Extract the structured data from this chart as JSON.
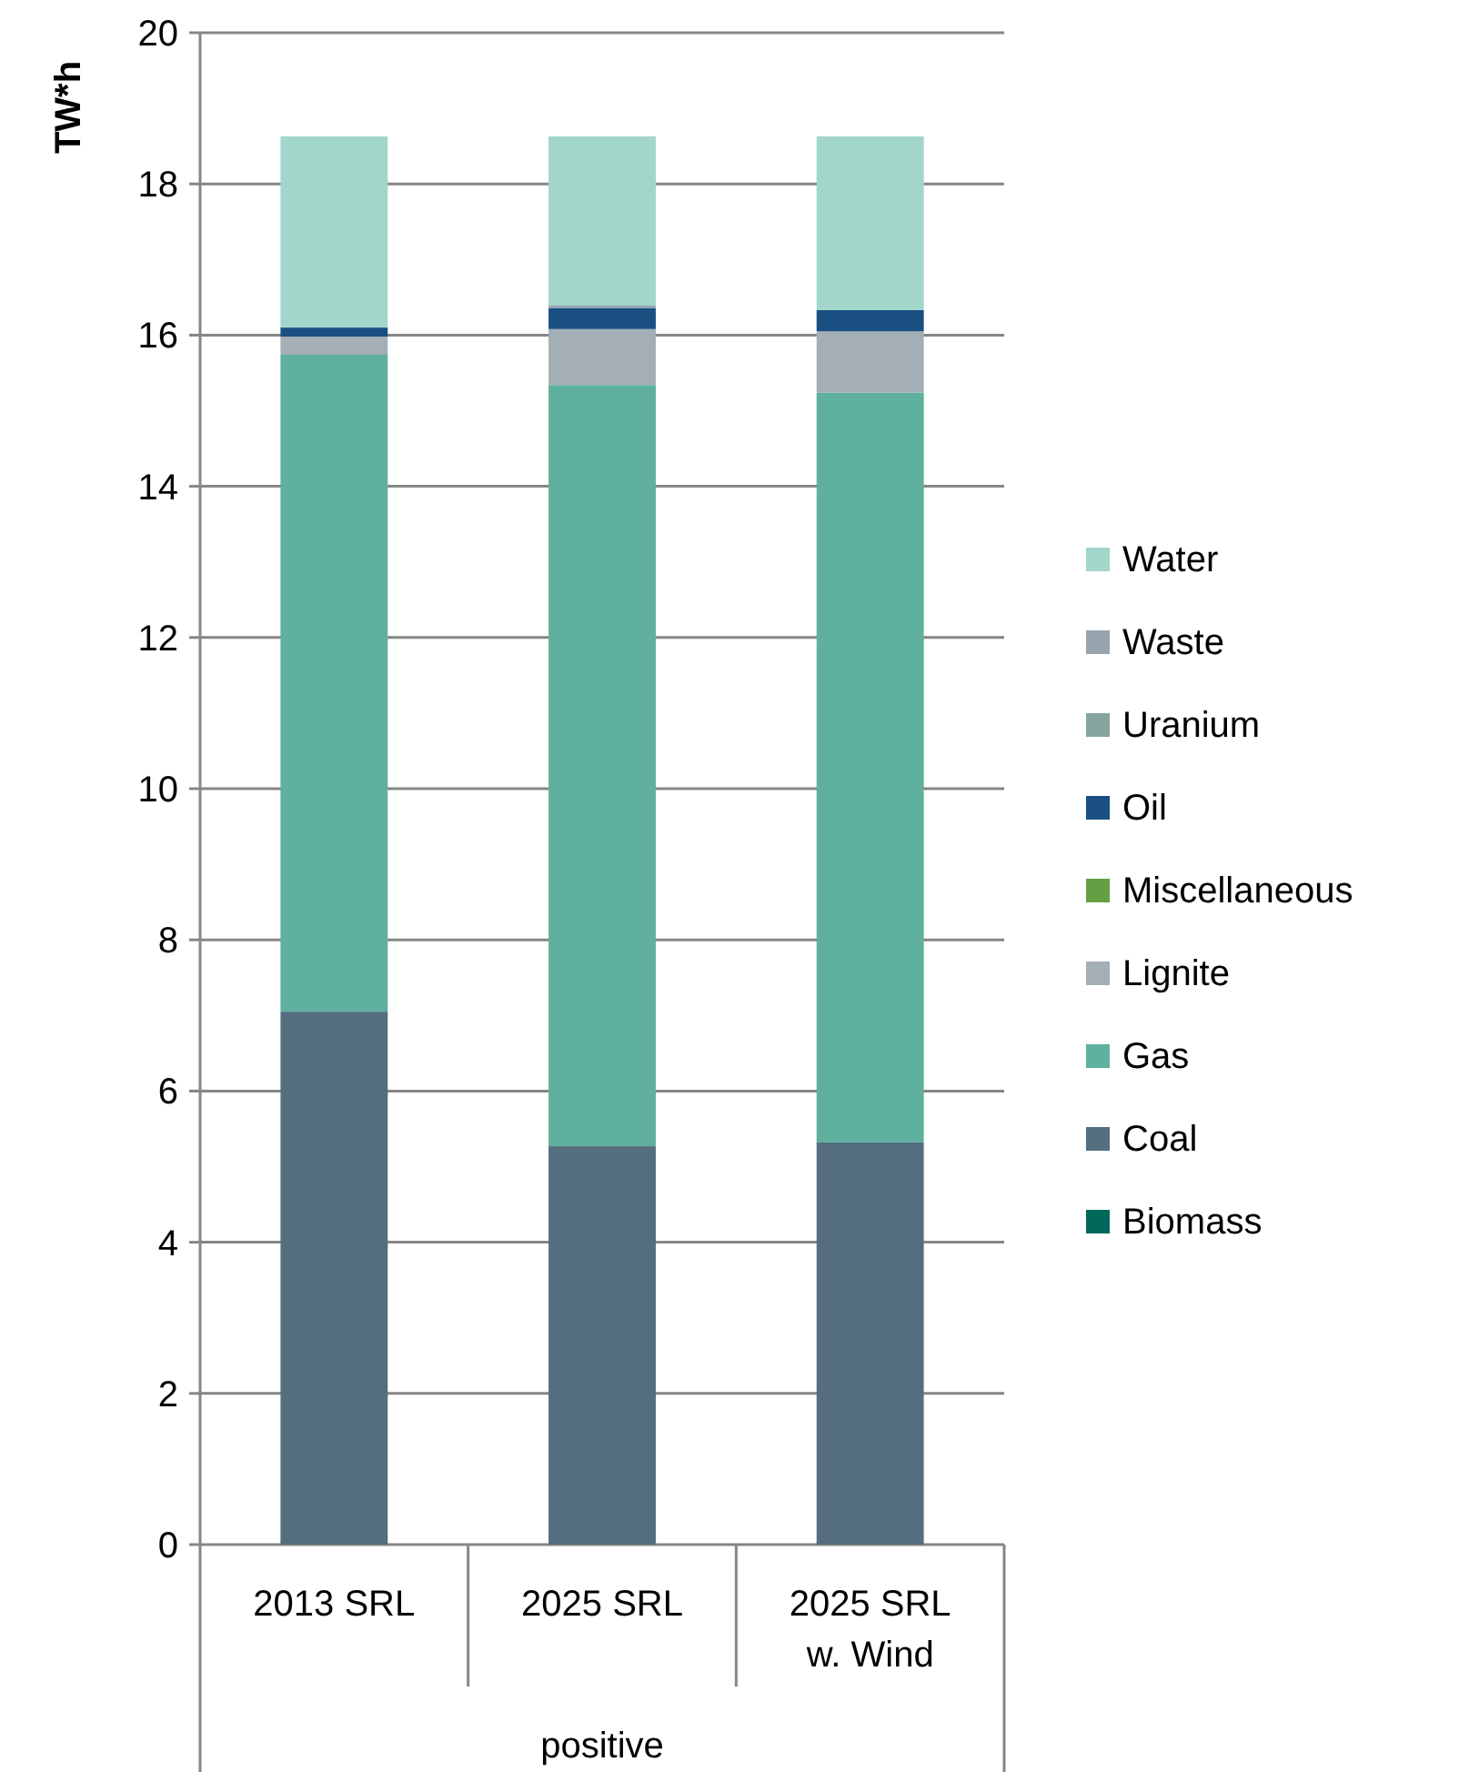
{
  "chart_data": {
    "type": "bar",
    "stacked": true,
    "ylabel": "TW*h",
    "xlabel": "positive",
    "categories": [
      "2013 SRL",
      "2025 SRL",
      "2025 SRL\nw. Wind"
    ],
    "series": [
      {
        "name": "Biomass",
        "color": "#00685a",
        "values": [
          0,
          0,
          0
        ]
      },
      {
        "name": "Coal",
        "color": "#546e7f",
        "values": [
          7.05,
          5.27,
          5.32
        ]
      },
      {
        "name": "Gas",
        "color": "#5fb09e",
        "values": [
          8.69,
          10.07,
          9.92
        ]
      },
      {
        "name": "Lignite",
        "color": "#a3afb5",
        "values": [
          0.24,
          0.74,
          0.81
        ]
      },
      {
        "name": "Miscellaneous",
        "color": "#64a043",
        "values": [
          0,
          0,
          0
        ]
      },
      {
        "name": "Oil",
        "color": "#1a4f82",
        "values": [
          0.12,
          0.28,
          0.28
        ]
      },
      {
        "name": "Uranium",
        "color": "#87a59f",
        "values": [
          0,
          0,
          0
        ]
      },
      {
        "name": "Waste",
        "color": "#97a4ae",
        "values": [
          0,
          0.03,
          0
        ]
      },
      {
        "name": "Water",
        "color": "#a2d6ca",
        "values": [
          2.53,
          2.24,
          2.3
        ]
      }
    ],
    "ylim": [
      0,
      20
    ],
    "yticks": [
      0,
      2,
      4,
      6,
      8,
      10,
      12,
      14,
      16,
      18,
      20
    ],
    "grid": "y",
    "legend": "right"
  }
}
